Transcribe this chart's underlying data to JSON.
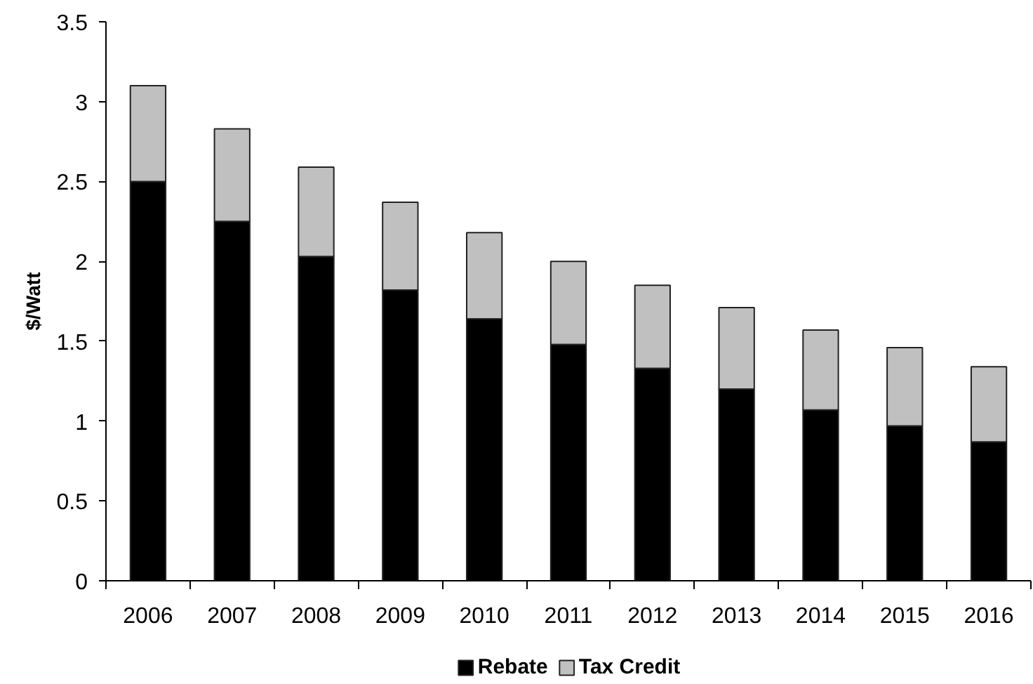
{
  "chart_data": {
    "type": "bar",
    "stacked": true,
    "ylabel": "$/Watt",
    "categories": [
      "2006",
      "2007",
      "2008",
      "2009",
      "2010",
      "2011",
      "2012",
      "2013",
      "2014",
      "2015",
      "2016"
    ],
    "series": [
      {
        "name": "Rebate",
        "color": "#000000",
        "values": [
          2.5,
          2.25,
          2.03,
          1.82,
          1.64,
          1.48,
          1.33,
          1.2,
          1.07,
          0.97,
          0.87
        ]
      },
      {
        "name": "Tax Credit",
        "color": "#c0c0c0",
        "values": [
          0.6,
          0.58,
          0.56,
          0.55,
          0.54,
          0.52,
          0.52,
          0.51,
          0.5,
          0.49,
          0.47
        ]
      }
    ],
    "ylim": [
      0,
      3.5
    ],
    "yticks": [
      0,
      0.5,
      1,
      1.5,
      2,
      2.5,
      3,
      3.5
    ],
    "legend": "bottom",
    "grid": false
  }
}
